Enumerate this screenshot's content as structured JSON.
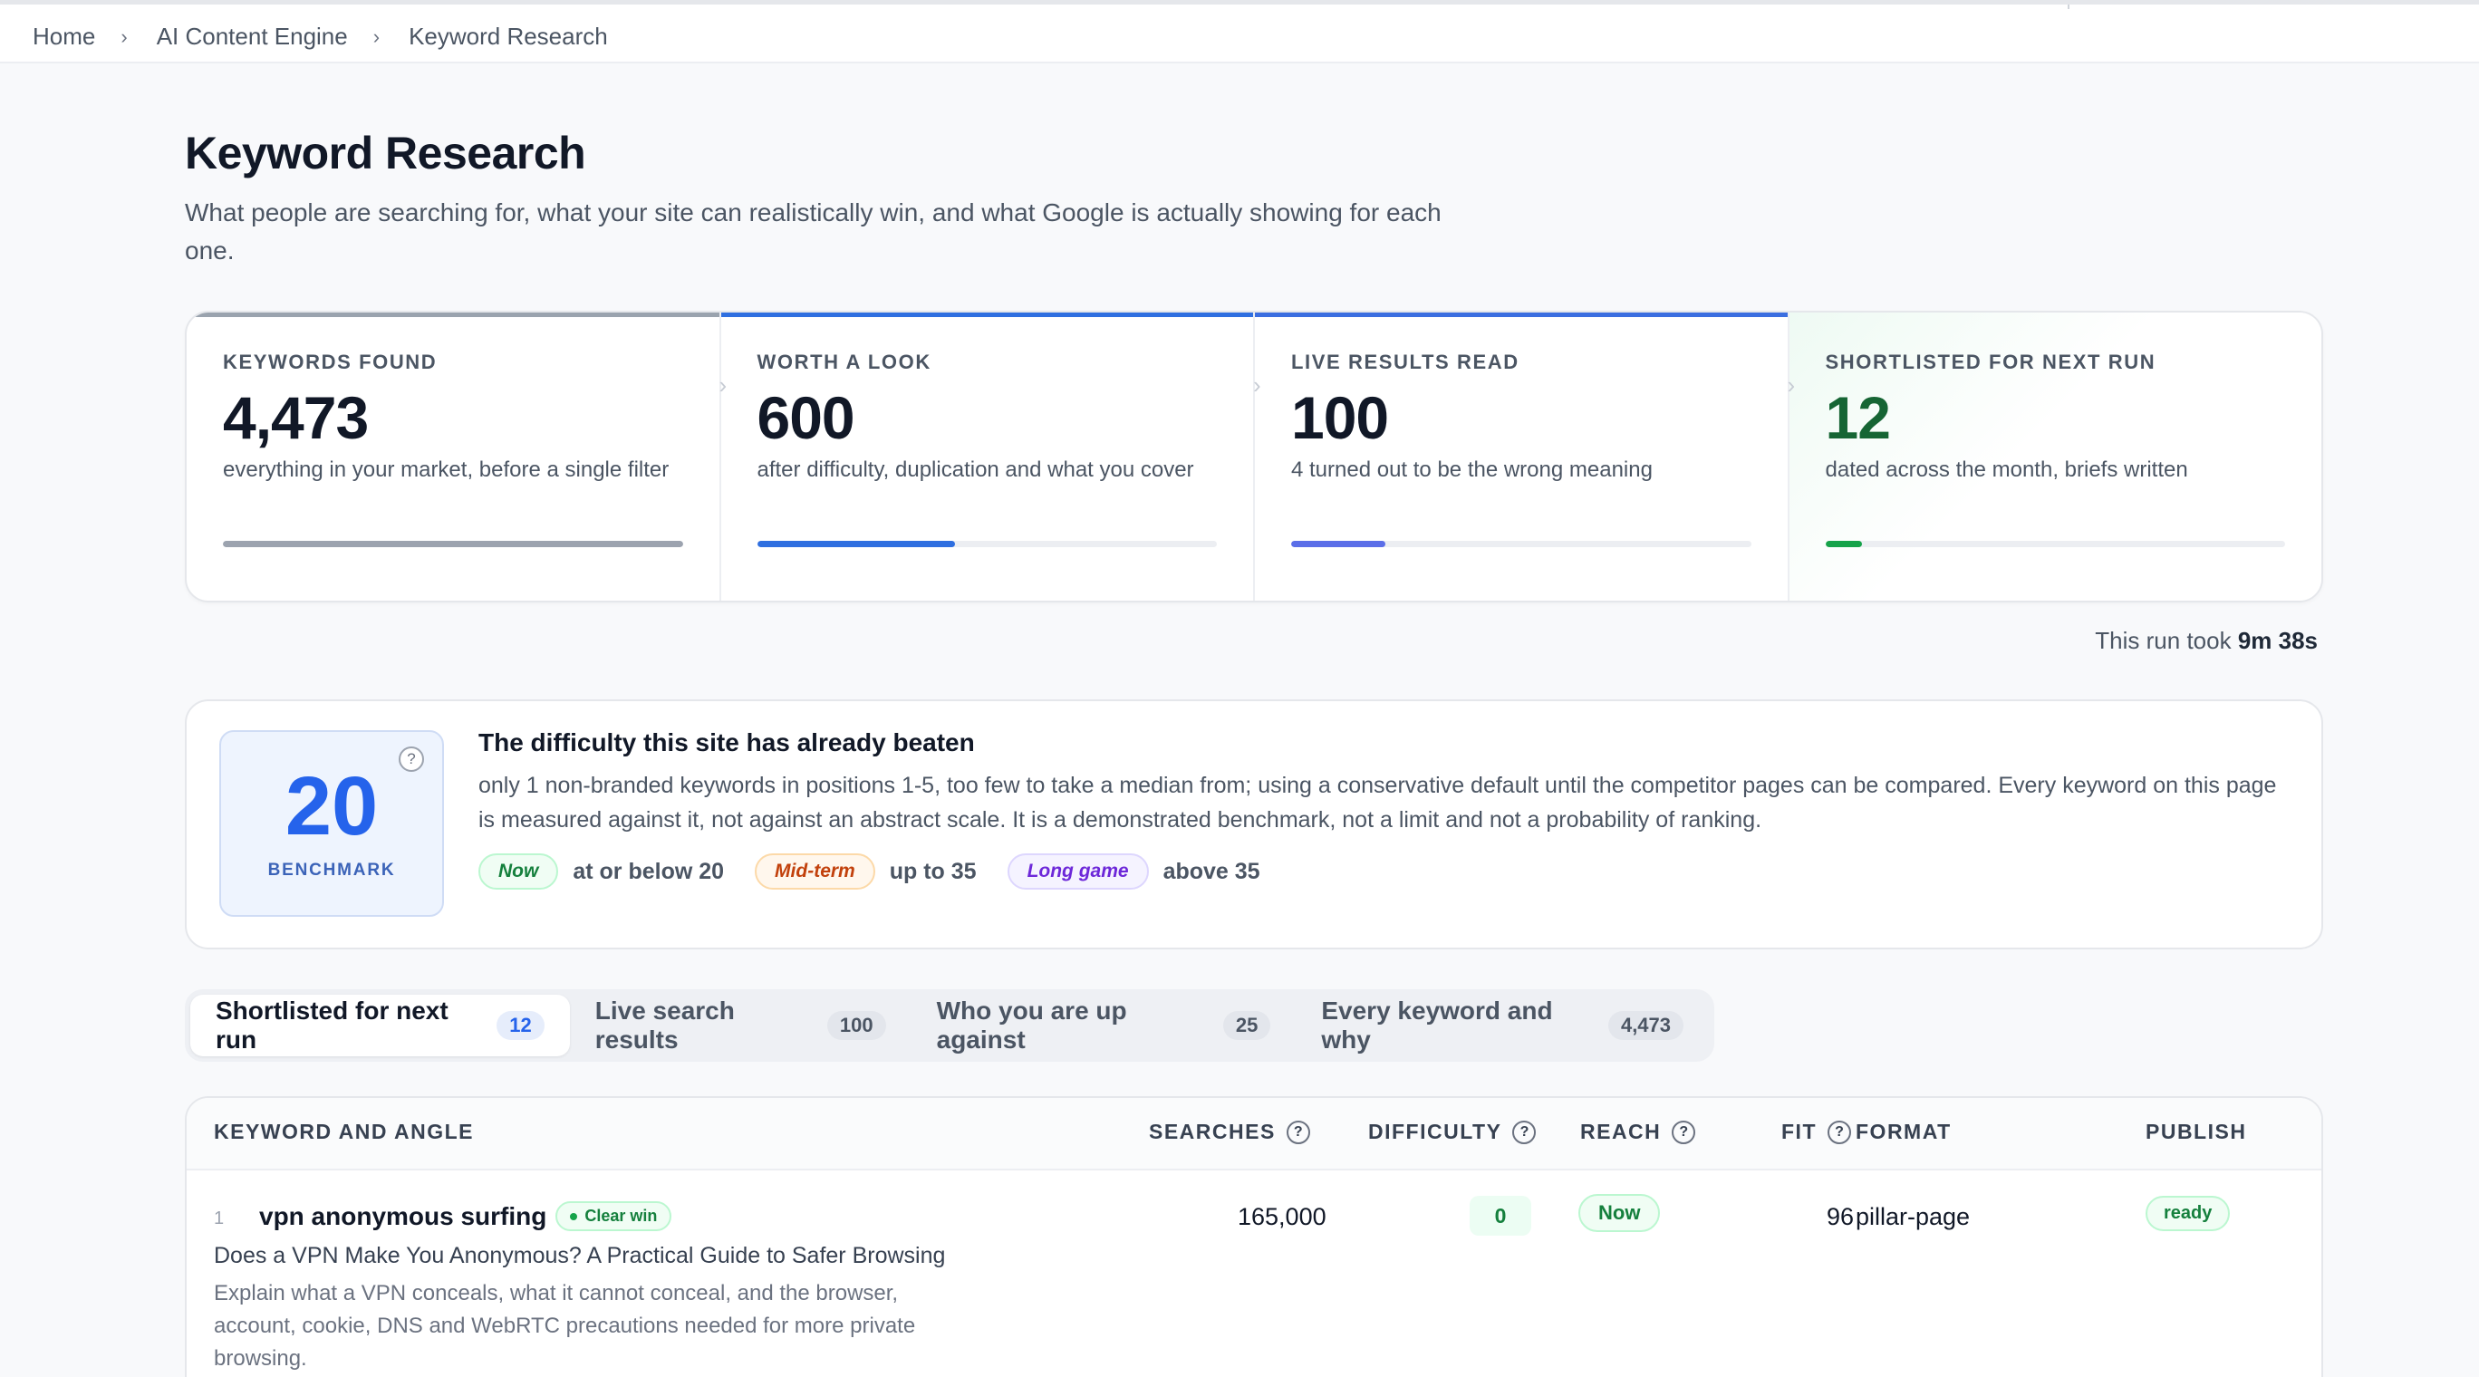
{
  "breadcrumb": {
    "home": "Home",
    "section": "AI Content Engine",
    "current": "Keyword Research",
    "separator": "›"
  },
  "header": {
    "title": "Keyword Research",
    "subtitle": "What people are searching for, what your site can realistically win, and what Google is actually showing for each one."
  },
  "stats": [
    {
      "label": "KEYWORDS FOUND",
      "value": "4,473",
      "desc": "everything in your market, before a single filter",
      "progress": 1.0,
      "color": "#9ca3af"
    },
    {
      "label": "WORTH A LOOK",
      "value": "600",
      "desc": "after difficulty, duplication and what you cover",
      "progress": 0.43,
      "color": "#2f6fe0"
    },
    {
      "label": "LIVE RESULTS READ",
      "value": "100",
      "desc": "4 turned out to be the wrong meaning",
      "progress": 0.205,
      "color": "#5b6ee8"
    },
    {
      "label": "SHORTLISTED FOR NEXT RUN",
      "value": "12",
      "desc": "dated across the month, briefs written",
      "progress": 0.08,
      "color": "#16a34a"
    }
  ],
  "runtime": {
    "prefix": "This run took ",
    "value": "9m 38s"
  },
  "benchmark": {
    "value": "20",
    "caption": "BENCHMARK",
    "help": "?",
    "title": "The difficulty this site has already beaten",
    "text": "only 1 non-branded keywords in positions 1-5, too few to take a median from; using a conservative default until the competitor pages can be compared. Every keyword on this page is measured against it, not against an abstract scale. It is a demonstrated benchmark, not a limit and not a probability of ranking.",
    "legend": [
      {
        "pill": "Now",
        "text": "at or below 20"
      },
      {
        "pill": "Mid-term",
        "text": "up to 35"
      },
      {
        "pill": "Long game",
        "text": "above 35"
      }
    ]
  },
  "tabs": [
    {
      "label": "Shortlisted for next run",
      "count": "12"
    },
    {
      "label": "Live search results",
      "count": "100"
    },
    {
      "label": "Who you are up against",
      "count": "25"
    },
    {
      "label": "Every keyword and why",
      "count": "4,473"
    }
  ],
  "table": {
    "headers": {
      "keyword": "KEYWORD AND ANGLE",
      "searches": "SEARCHES",
      "difficulty": "DIFFICULTY",
      "reach": "REACH",
      "fit": "FIT",
      "format": "FORMAT",
      "publish": "PUBLISH",
      "help": "?"
    },
    "rows": [
      {
        "num": "1",
        "keyword": "vpn anonymous surfing",
        "badge": "Clear win",
        "angle": "Does a VPN Make You Anonymous? A Practical Guide to Safer Browsing",
        "description": "Explain what a VPN conceals, what it cannot conceal, and the browser, account, cookie, DNS and WebRTC precautions needed for more private browsing.",
        "searches": "165,000",
        "difficulty": "0",
        "reach": "Now",
        "fit": "96",
        "format": "pillar-page",
        "publish": "ready"
      }
    ]
  }
}
